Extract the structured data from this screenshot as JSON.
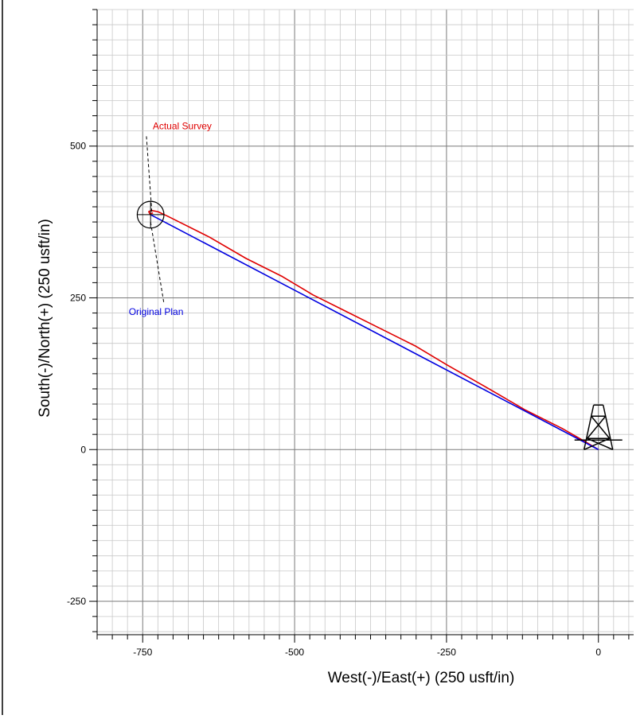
{
  "chart_data": {
    "type": "line",
    "title": "",
    "xlabel": "West(-)/East(+) (250 usft/in)",
    "ylabel": "South(-)/North(+) (250 usft/in)",
    "xlim": [
      -825,
      58
    ],
    "ylim": [
      -305,
      725
    ],
    "x_ticks": [
      -750,
      -500,
      -250,
      0
    ],
    "y_ticks": [
      -250,
      0,
      250,
      500
    ],
    "x_tick_labels": [
      "-750",
      "-500",
      "-250",
      "0"
    ],
    "y_tick_labels": [
      "-250",
      "0",
      "250",
      "500"
    ],
    "grid": true,
    "grid_minor_step": 25,
    "grid_major_step": 250,
    "colors": {
      "actual": "#e00000",
      "plan": "#0000e0",
      "axis": "#000000",
      "grid_minor": "#c8c8c8",
      "grid_major": "#7a7a7a"
    },
    "series": [
      {
        "name": "Actual Survey",
        "color": "#e00000",
        "x": [
          0,
          -20,
          -60,
          -120,
          -180,
          -250,
          -300,
          -370,
          -420,
          -470,
          -520,
          -580,
          -640,
          -690,
          -710,
          -725,
          -736,
          -740,
          -738,
          -733
        ],
        "y": [
          0,
          12,
          35,
          65,
          100,
          140,
          170,
          205,
          230,
          255,
          285,
          315,
          350,
          375,
          385,
          392,
          394,
          392,
          388,
          390
        ]
      },
      {
        "name": "Original Plan",
        "color": "#0000e0",
        "x": [
          0,
          -737
        ],
        "y": [
          0,
          387
        ]
      }
    ],
    "annotations": [
      {
        "text": "Actual Survey",
        "color": "#e00000",
        "x": -735,
        "y": 392,
        "label_x": -685,
        "label_y": 515
      },
      {
        "text": "Original Plan",
        "color": "#0000e0",
        "x": -737,
        "y": 375,
        "label_x": -728,
        "label_y": 240
      }
    ],
    "target_circle": {
      "x": -737,
      "y": 387,
      "radius": 22
    },
    "rig_icon": {
      "x": 0,
      "y": 0,
      "name": "drilling-rig-icon"
    }
  }
}
